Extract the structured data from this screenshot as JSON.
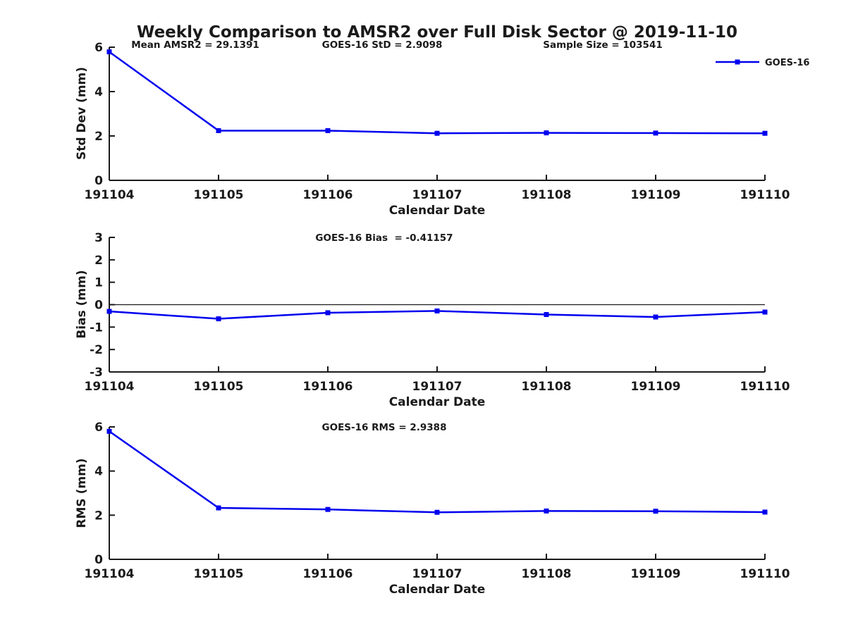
{
  "figure": {
    "title": "Weekly Comparison to AMSR2 over Full Disk Sector @ 2019-11-10",
    "background": "#ffffff",
    "line_color": "#0000ee",
    "text_color": "#1a1a1a",
    "axis_color": "#1a1a1a",
    "marker": "filled-square",
    "legend": {
      "label": "GOES-16",
      "position": "northeast",
      "box": false
    },
    "xlabel": "Calendar Date"
  },
  "chart_data": [
    {
      "type": "line",
      "name": "std-dev-subplot",
      "ylabel": "Std Dev (mm)",
      "xlabel": "Calendar Date",
      "categories": [
        "191104",
        "191105",
        "191106",
        "191107",
        "191108",
        "191109",
        "191110"
      ],
      "series": [
        {
          "name": "GOES-16",
          "values": [
            5.79,
            2.24,
            2.24,
            2.12,
            2.14,
            2.13,
            2.12
          ]
        }
      ],
      "ylim": [
        0,
        6
      ],
      "yticks": [
        0,
        2,
        4,
        6
      ],
      "grid": false,
      "zero_line": false,
      "annotations": [
        {
          "text": "Mean AMSR2 = 29.1391"
        },
        {
          "text": "GOES-16 StD = 2.9098"
        },
        {
          "text": "Sample Size = 103541"
        }
      ]
    },
    {
      "type": "line",
      "name": "bias-subplot",
      "ylabel": "Bias (mm)",
      "xlabel": "Calendar Date",
      "categories": [
        "191104",
        "191105",
        "191106",
        "191107",
        "191108",
        "191109",
        "191110"
      ],
      "series": [
        {
          "name": "GOES-16",
          "values": [
            -0.3,
            -0.63,
            -0.36,
            -0.28,
            -0.44,
            -0.55,
            -0.33
          ]
        }
      ],
      "ylim": [
        -3,
        3
      ],
      "yticks": [
        -3,
        -2,
        -1,
        0,
        1,
        2,
        3
      ],
      "grid": false,
      "zero_line": true,
      "annotations": [
        {
          "text": "GOES-16 Bias  = -0.41157"
        }
      ]
    },
    {
      "type": "line",
      "name": "rms-subplot",
      "ylabel": "RMS (mm)",
      "xlabel": "Calendar Date",
      "categories": [
        "191104",
        "191105",
        "191106",
        "191107",
        "191108",
        "191109",
        "191110"
      ],
      "series": [
        {
          "name": "GOES-16",
          "values": [
            5.8,
            2.33,
            2.26,
            2.13,
            2.19,
            2.18,
            2.14
          ]
        }
      ],
      "ylim": [
        0,
        6
      ],
      "yticks": [
        0,
        2,
        4,
        6
      ],
      "grid": false,
      "zero_line": false,
      "annotations": [
        {
          "text": "GOES-16 RMS = 2.9388"
        }
      ]
    }
  ]
}
